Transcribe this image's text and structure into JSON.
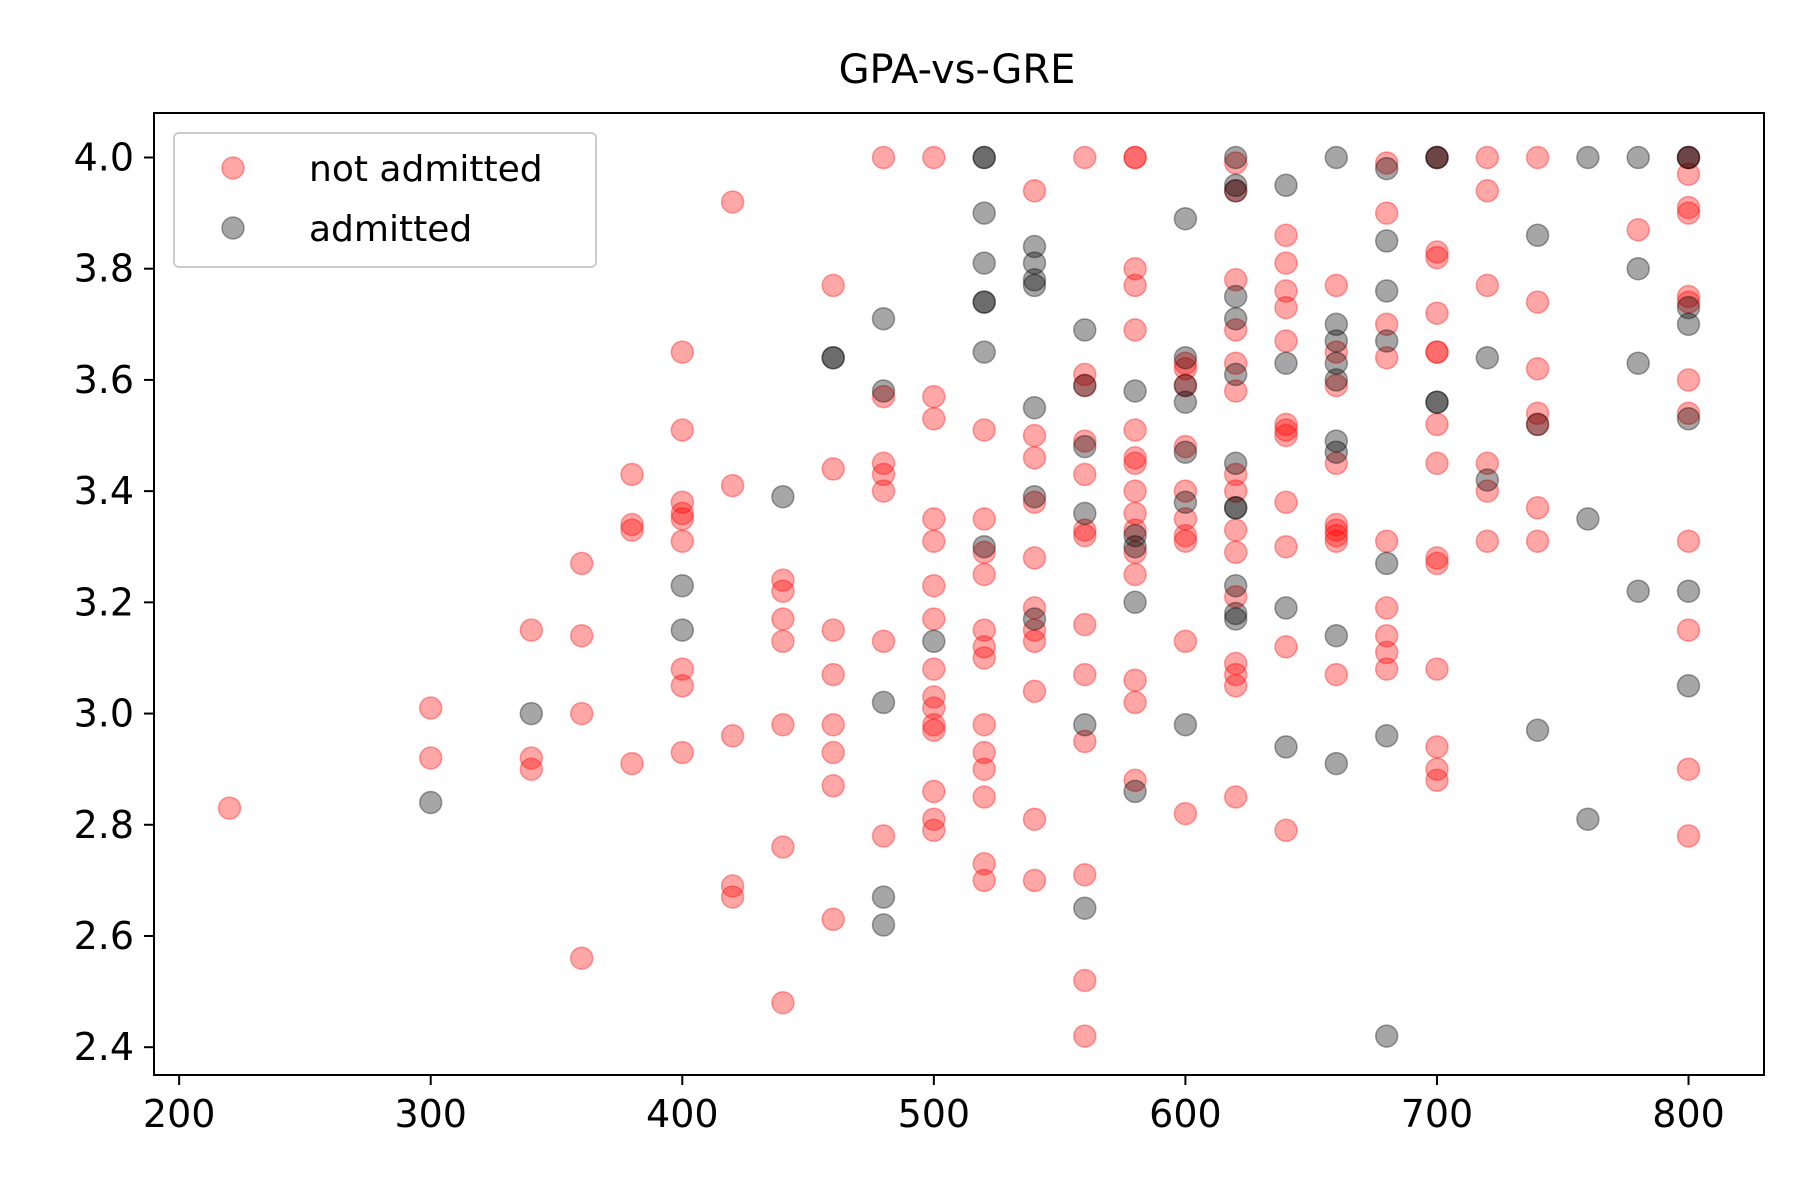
{
  "chart_data": {
    "type": "scatter",
    "title": "GPA-vs-GRE",
    "xlabel": "",
    "ylabel": "",
    "xlim": [
      190,
      830
    ],
    "ylim": [
      2.35,
      4.08
    ],
    "xticks": [
      200,
      300,
      400,
      500,
      600,
      700,
      800
    ],
    "yticks": [
      2.4,
      2.6,
      2.8,
      3.0,
      3.2,
      3.4,
      3.6,
      3.8,
      4.0
    ],
    "xtick_labels": [
      "200",
      "300",
      "400",
      "500",
      "600",
      "700",
      "800"
    ],
    "ytick_labels": [
      "2.4",
      "2.6",
      "2.8",
      "3.0",
      "3.2",
      "3.4",
      "3.6",
      "3.8",
      "4.0"
    ],
    "grid": false,
    "legend_position": "top-left",
    "series": [
      {
        "name": "not admitted",
        "color": "#ff0000",
        "opacity": 0.35,
        "points": [
          [
            220,
            2.83
          ],
          [
            300,
            3.01
          ],
          [
            300,
            2.92
          ],
          [
            340,
            3.15
          ],
          [
            340,
            2.92
          ],
          [
            340,
            2.9
          ],
          [
            360,
            3.27
          ],
          [
            360,
            3.14
          ],
          [
            360,
            3.0
          ],
          [
            360,
            2.56
          ],
          [
            380,
            3.43
          ],
          [
            380,
            3.34
          ],
          [
            380,
            3.33
          ],
          [
            380,
            2.91
          ],
          [
            400,
            3.65
          ],
          [
            400,
            3.51
          ],
          [
            400,
            3.38
          ],
          [
            400,
            3.36
          ],
          [
            400,
            3.35
          ],
          [
            400,
            3.31
          ],
          [
            400,
            3.08
          ],
          [
            400,
            3.05
          ],
          [
            400,
            2.93
          ],
          [
            420,
            3.92
          ],
          [
            420,
            3.41
          ],
          [
            420,
            2.96
          ],
          [
            420,
            2.69
          ],
          [
            420,
            2.67
          ],
          [
            440,
            3.24
          ],
          [
            440,
            3.22
          ],
          [
            440,
            3.17
          ],
          [
            440,
            3.13
          ],
          [
            440,
            2.98
          ],
          [
            440,
            2.76
          ],
          [
            440,
            2.48
          ],
          [
            460,
            3.77
          ],
          [
            460,
            3.44
          ],
          [
            460,
            3.15
          ],
          [
            460,
            3.07
          ],
          [
            460,
            2.98
          ],
          [
            460,
            2.93
          ],
          [
            460,
            2.87
          ],
          [
            460,
            2.63
          ],
          [
            480,
            4.0
          ],
          [
            480,
            3.57
          ],
          [
            480,
            3.45
          ],
          [
            480,
            3.43
          ],
          [
            480,
            3.4
          ],
          [
            480,
            3.13
          ],
          [
            480,
            2.78
          ],
          [
            500,
            4.0
          ],
          [
            500,
            3.57
          ],
          [
            500,
            3.53
          ],
          [
            500,
            3.35
          ],
          [
            500,
            3.31
          ],
          [
            500,
            3.23
          ],
          [
            500,
            3.17
          ],
          [
            500,
            3.08
          ],
          [
            500,
            3.03
          ],
          [
            500,
            3.01
          ],
          [
            500,
            2.98
          ],
          [
            500,
            2.97
          ],
          [
            500,
            2.86
          ],
          [
            500,
            2.81
          ],
          [
            500,
            2.79
          ],
          [
            520,
            3.51
          ],
          [
            520,
            3.35
          ],
          [
            520,
            3.29
          ],
          [
            520,
            3.25
          ],
          [
            520,
            3.15
          ],
          [
            520,
            3.12
          ],
          [
            520,
            3.1
          ],
          [
            520,
            2.98
          ],
          [
            520,
            2.93
          ],
          [
            520,
            2.9
          ],
          [
            520,
            2.85
          ],
          [
            520,
            2.73
          ],
          [
            520,
            2.7
          ],
          [
            540,
            3.94
          ],
          [
            540,
            3.5
          ],
          [
            540,
            3.46
          ],
          [
            540,
            3.38
          ],
          [
            540,
            3.28
          ],
          [
            540,
            3.19
          ],
          [
            540,
            3.15
          ],
          [
            540,
            3.13
          ],
          [
            540,
            3.04
          ],
          [
            540,
            2.81
          ],
          [
            540,
            2.7
          ],
          [
            560,
            4.0
          ],
          [
            560,
            3.61
          ],
          [
            560,
            3.59
          ],
          [
            560,
            3.49
          ],
          [
            560,
            3.43
          ],
          [
            560,
            3.33
          ],
          [
            560,
            3.32
          ],
          [
            560,
            3.16
          ],
          [
            560,
            3.07
          ],
          [
            560,
            2.95
          ],
          [
            560,
            2.71
          ],
          [
            560,
            2.52
          ],
          [
            560,
            2.42
          ],
          [
            580,
            4.0
          ],
          [
            580,
            4.0
          ],
          [
            580,
            3.8
          ],
          [
            580,
            3.77
          ],
          [
            580,
            3.69
          ],
          [
            580,
            3.51
          ],
          [
            580,
            3.46
          ],
          [
            580,
            3.45
          ],
          [
            580,
            3.4
          ],
          [
            580,
            3.36
          ],
          [
            580,
            3.33
          ],
          [
            580,
            3.29
          ],
          [
            580,
            3.25
          ],
          [
            580,
            3.06
          ],
          [
            580,
            3.02
          ],
          [
            580,
            2.88
          ],
          [
            600,
            3.63
          ],
          [
            600,
            3.62
          ],
          [
            600,
            3.59
          ],
          [
            600,
            3.48
          ],
          [
            600,
            3.4
          ],
          [
            600,
            3.35
          ],
          [
            600,
            3.32
          ],
          [
            600,
            3.31
          ],
          [
            600,
            3.13
          ],
          [
            600,
            2.82
          ],
          [
            620,
            3.99
          ],
          [
            620,
            3.94
          ],
          [
            620,
            3.78
          ],
          [
            620,
            3.69
          ],
          [
            620,
            3.63
          ],
          [
            620,
            3.58
          ],
          [
            620,
            3.43
          ],
          [
            620,
            3.4
          ],
          [
            620,
            3.33
          ],
          [
            620,
            3.29
          ],
          [
            620,
            3.21
          ],
          [
            620,
            3.09
          ],
          [
            620,
            3.07
          ],
          [
            620,
            3.05
          ],
          [
            620,
            2.85
          ],
          [
            640,
            3.86
          ],
          [
            640,
            3.81
          ],
          [
            640,
            3.76
          ],
          [
            640,
            3.73
          ],
          [
            640,
            3.67
          ],
          [
            640,
            3.52
          ],
          [
            640,
            3.51
          ],
          [
            640,
            3.5
          ],
          [
            640,
            3.38
          ],
          [
            640,
            3.3
          ],
          [
            640,
            3.12
          ],
          [
            640,
            2.79
          ],
          [
            660,
            3.77
          ],
          [
            660,
            3.65
          ],
          [
            660,
            3.59
          ],
          [
            660,
            3.45
          ],
          [
            660,
            3.34
          ],
          [
            660,
            3.33
          ],
          [
            660,
            3.32
          ],
          [
            660,
            3.31
          ],
          [
            660,
            3.07
          ],
          [
            680,
            3.99
          ],
          [
            680,
            3.9
          ],
          [
            680,
            3.7
          ],
          [
            680,
            3.64
          ],
          [
            680,
            3.31
          ],
          [
            680,
            3.19
          ],
          [
            680,
            3.14
          ],
          [
            680,
            3.11
          ],
          [
            680,
            3.08
          ],
          [
            700,
            4.0
          ],
          [
            700,
            3.83
          ],
          [
            700,
            3.82
          ],
          [
            700,
            3.72
          ],
          [
            700,
            3.65
          ],
          [
            700,
            3.65
          ],
          [
            700,
            3.52
          ],
          [
            700,
            3.45
          ],
          [
            700,
            3.28
          ],
          [
            700,
            3.27
          ],
          [
            700,
            3.08
          ],
          [
            700,
            2.94
          ],
          [
            700,
            2.9
          ],
          [
            700,
            2.88
          ],
          [
            720,
            4.0
          ],
          [
            720,
            3.94
          ],
          [
            720,
            3.77
          ],
          [
            720,
            3.45
          ],
          [
            720,
            3.4
          ],
          [
            720,
            3.31
          ],
          [
            740,
            4.0
          ],
          [
            740,
            3.74
          ],
          [
            740,
            3.62
          ],
          [
            740,
            3.54
          ],
          [
            740,
            3.52
          ],
          [
            740,
            3.37
          ],
          [
            740,
            3.31
          ],
          [
            780,
            3.87
          ],
          [
            800,
            4.0
          ],
          [
            800,
            3.97
          ],
          [
            800,
            3.91
          ],
          [
            800,
            3.9
          ],
          [
            800,
            3.75
          ],
          [
            800,
            3.74
          ],
          [
            800,
            3.6
          ],
          [
            800,
            3.54
          ],
          [
            800,
            3.31
          ],
          [
            800,
            3.15
          ],
          [
            800,
            2.9
          ],
          [
            800,
            2.78
          ]
        ]
      },
      {
        "name": "admitted",
        "color": "#000000",
        "opacity": 0.35,
        "points": [
          [
            300,
            2.84
          ],
          [
            340,
            3.0
          ],
          [
            400,
            3.23
          ],
          [
            400,
            3.15
          ],
          [
            440,
            3.39
          ],
          [
            460,
            3.64
          ],
          [
            460,
            3.64
          ],
          [
            480,
            3.71
          ],
          [
            480,
            3.58
          ],
          [
            480,
            3.02
          ],
          [
            480,
            2.67
          ],
          [
            480,
            2.62
          ],
          [
            500,
            3.13
          ],
          [
            520,
            4.0
          ],
          [
            520,
            4.0
          ],
          [
            520,
            3.9
          ],
          [
            520,
            3.81
          ],
          [
            520,
            3.74
          ],
          [
            520,
            3.74
          ],
          [
            520,
            3.65
          ],
          [
            520,
            3.3
          ],
          [
            540,
            3.84
          ],
          [
            540,
            3.81
          ],
          [
            540,
            3.78
          ],
          [
            540,
            3.77
          ],
          [
            540,
            3.55
          ],
          [
            540,
            3.39
          ],
          [
            540,
            3.17
          ],
          [
            560,
            3.69
          ],
          [
            560,
            3.59
          ],
          [
            560,
            3.48
          ],
          [
            560,
            3.36
          ],
          [
            560,
            2.98
          ],
          [
            560,
            2.65
          ],
          [
            580,
            3.58
          ],
          [
            580,
            3.32
          ],
          [
            580,
            3.3
          ],
          [
            580,
            3.2
          ],
          [
            580,
            2.86
          ],
          [
            600,
            3.89
          ],
          [
            600,
            3.64
          ],
          [
            600,
            3.59
          ],
          [
            600,
            3.56
          ],
          [
            600,
            3.47
          ],
          [
            600,
            3.38
          ],
          [
            600,
            2.98
          ],
          [
            620,
            4.0
          ],
          [
            620,
            3.95
          ],
          [
            620,
            3.94
          ],
          [
            620,
            3.75
          ],
          [
            620,
            3.71
          ],
          [
            620,
            3.61
          ],
          [
            620,
            3.45
          ],
          [
            620,
            3.37
          ],
          [
            620,
            3.37
          ],
          [
            620,
            3.23
          ],
          [
            620,
            3.18
          ],
          [
            620,
            3.17
          ],
          [
            640,
            3.95
          ],
          [
            640,
            3.63
          ],
          [
            640,
            3.19
          ],
          [
            640,
            2.94
          ],
          [
            660,
            4.0
          ],
          [
            660,
            3.7
          ],
          [
            660,
            3.67
          ],
          [
            660,
            3.63
          ],
          [
            660,
            3.6
          ],
          [
            660,
            3.49
          ],
          [
            660,
            3.47
          ],
          [
            660,
            3.14
          ],
          [
            660,
            2.91
          ],
          [
            680,
            3.98
          ],
          [
            680,
            3.85
          ],
          [
            680,
            3.76
          ],
          [
            680,
            3.67
          ],
          [
            680,
            3.27
          ],
          [
            680,
            2.96
          ],
          [
            680,
            2.42
          ],
          [
            700,
            4.0
          ],
          [
            700,
            4.0
          ],
          [
            700,
            3.56
          ],
          [
            700,
            3.56
          ],
          [
            720,
            3.64
          ],
          [
            720,
            3.42
          ],
          [
            740,
            3.86
          ],
          [
            740,
            3.52
          ],
          [
            740,
            2.97
          ],
          [
            760,
            4.0
          ],
          [
            760,
            3.35
          ],
          [
            760,
            2.81
          ],
          [
            780,
            4.0
          ],
          [
            780,
            3.8
          ],
          [
            780,
            3.63
          ],
          [
            780,
            3.22
          ],
          [
            800,
            4.0
          ],
          [
            800,
            4.0
          ],
          [
            800,
            3.73
          ],
          [
            800,
            3.7
          ],
          [
            800,
            3.53
          ],
          [
            800,
            3.22
          ],
          [
            800,
            3.05
          ]
        ]
      }
    ]
  }
}
